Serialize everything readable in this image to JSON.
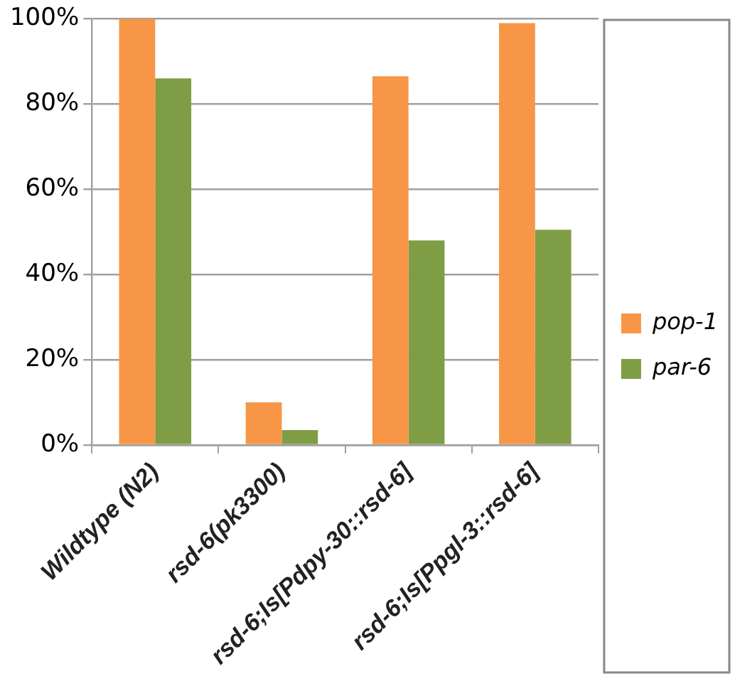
{
  "chart_data": {
    "type": "bar",
    "categories": [
      "Wildtype (N2)",
      "rsd-6(pk3300)",
      "rsd-6;Is[Pdpy-30::rsd-6]",
      "rsd-6;Is[Ppgl-3::rsd-6]"
    ],
    "series": [
      {
        "name": "pop-1",
        "color": "#f79646",
        "values": [
          100,
          10,
          86.5,
          99
        ]
      },
      {
        "name": "par-6",
        "color": "#7f9d45",
        "values": [
          86,
          3.5,
          48,
          50.5
        ]
      }
    ],
    "ylim": [
      0,
      100
    ],
    "yticks": [
      {
        "value": 0,
        "label": "0%"
      },
      {
        "value": 20,
        "label": "20%"
      },
      {
        "value": 40,
        "label": "40%"
      },
      {
        "value": 60,
        "label": "60%"
      },
      {
        "value": 80,
        "label": "80%"
      },
      {
        "value": 100,
        "label": "100%"
      }
    ],
    "grid": "y",
    "legend": "right"
  }
}
